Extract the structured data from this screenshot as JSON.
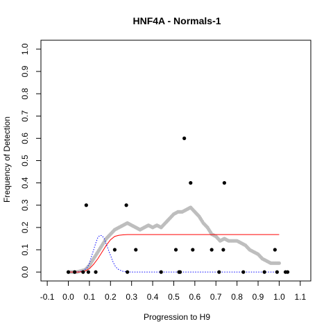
{
  "chart_data": {
    "type": "scatter",
    "title": "HNF4A - Normals-1",
    "xlabel": "Progression to H9",
    "ylabel": "Frequency of Detection",
    "xlim": [
      -0.13,
      1.15
    ],
    "ylim": [
      -0.04,
      1.04
    ],
    "x_ticks": [
      "-0.1",
      "0.0",
      "0.1",
      "0.2",
      "0.3",
      "0.4",
      "0.5",
      "0.6",
      "0.7",
      "0.8",
      "0.9",
      "1.0",
      "1.1"
    ],
    "x_tick_values": [
      -0.1,
      0.0,
      0.1,
      0.2,
      0.3,
      0.4,
      0.5,
      0.6,
      0.7,
      0.8,
      0.9,
      1.0,
      1.1
    ],
    "y_ticks": [
      "0.0",
      "0.1",
      "0.2",
      "0.3",
      "0.4",
      "0.5",
      "0.6",
      "0.7",
      "0.8",
      "0.9",
      "1.0"
    ],
    "y_tick_values": [
      0.0,
      0.1,
      0.2,
      0.3,
      0.4,
      0.5,
      0.6,
      0.7,
      0.8,
      0.9,
      1.0
    ],
    "grid": false,
    "colors": {
      "points": "#000000",
      "smooth": "#bebebe",
      "fit": "#ff0000",
      "density": "#0000ff"
    },
    "series": [
      {
        "kind": "points",
        "x": [
          0.0,
          0.03,
          0.07,
          0.085,
          0.095,
          0.13,
          0.22,
          0.275,
          0.28,
          0.32,
          0.44,
          0.51,
          0.525,
          0.53,
          0.55,
          0.58,
          0.59,
          0.68,
          0.715,
          0.735,
          0.74,
          0.83,
          0.93,
          0.98,
          0.99,
          1.03,
          1.04
        ],
        "y": [
          0.0,
          0.0,
          0.0,
          0.3,
          0.0,
          0.0,
          0.1,
          0.3,
          0.0,
          0.1,
          0.0,
          0.1,
          0.0,
          0.0,
          0.6,
          0.4,
          0.1,
          0.1,
          0.0,
          0.1,
          0.4,
          0.0,
          0.0,
          0.1,
          0.0,
          0.0,
          0.0
        ]
      },
      {
        "kind": "smooth",
        "x": [
          0.0,
          0.02,
          0.04,
          0.06,
          0.08,
          0.1,
          0.12,
          0.14,
          0.16,
          0.18,
          0.2,
          0.22,
          0.24,
          0.26,
          0.28,
          0.3,
          0.32,
          0.34,
          0.36,
          0.38,
          0.4,
          0.42,
          0.44,
          0.46,
          0.48,
          0.5,
          0.52,
          0.54,
          0.56,
          0.58,
          0.6,
          0.62,
          0.64,
          0.66,
          0.68,
          0.7,
          0.72,
          0.74,
          0.76,
          0.78,
          0.8,
          0.82,
          0.84,
          0.86,
          0.88,
          0.9,
          0.92,
          0.94,
          0.96,
          0.98,
          1.0
        ],
        "y": [
          0.0,
          0.0,
          0.0,
          0.005,
          0.01,
          0.03,
          0.06,
          0.09,
          0.12,
          0.15,
          0.17,
          0.19,
          0.2,
          0.21,
          0.22,
          0.21,
          0.2,
          0.19,
          0.2,
          0.21,
          0.2,
          0.21,
          0.2,
          0.22,
          0.24,
          0.26,
          0.27,
          0.27,
          0.28,
          0.29,
          0.27,
          0.25,
          0.22,
          0.2,
          0.17,
          0.16,
          0.14,
          0.15,
          0.14,
          0.14,
          0.14,
          0.13,
          0.12,
          0.1,
          0.09,
          0.08,
          0.06,
          0.05,
          0.04,
          0.04,
          0.04
        ]
      },
      {
        "kind": "fit",
        "x": [
          0.0,
          0.05,
          0.08,
          0.1,
          0.12,
          0.14,
          0.16,
          0.18,
          0.2,
          0.22,
          0.24,
          0.26,
          0.28,
          0.3,
          0.4,
          0.5,
          0.6,
          0.7,
          0.8,
          0.9,
          1.0
        ],
        "y": [
          0.0,
          0.0,
          0.005,
          0.015,
          0.035,
          0.06,
          0.09,
          0.12,
          0.145,
          0.16,
          0.165,
          0.167,
          0.168,
          0.168,
          0.168,
          0.168,
          0.168,
          0.168,
          0.168,
          0.168,
          0.168
        ]
      },
      {
        "kind": "density",
        "x": [
          0.0,
          0.04,
          0.07,
          0.09,
          0.1,
          0.11,
          0.12,
          0.13,
          0.14,
          0.15,
          0.16,
          0.17,
          0.18,
          0.19,
          0.2,
          0.21,
          0.22,
          0.23,
          0.24,
          0.26,
          0.28,
          0.3,
          0.4,
          0.6,
          0.8,
          1.0
        ],
        "y": [
          0.0,
          0.0,
          0.005,
          0.02,
          0.04,
          0.07,
          0.1,
          0.13,
          0.155,
          0.165,
          0.163,
          0.15,
          0.125,
          0.1,
          0.075,
          0.05,
          0.03,
          0.018,
          0.01,
          0.003,
          0.001,
          0.0,
          0.0,
          0.0,
          0.0,
          0.0
        ]
      }
    ]
  }
}
